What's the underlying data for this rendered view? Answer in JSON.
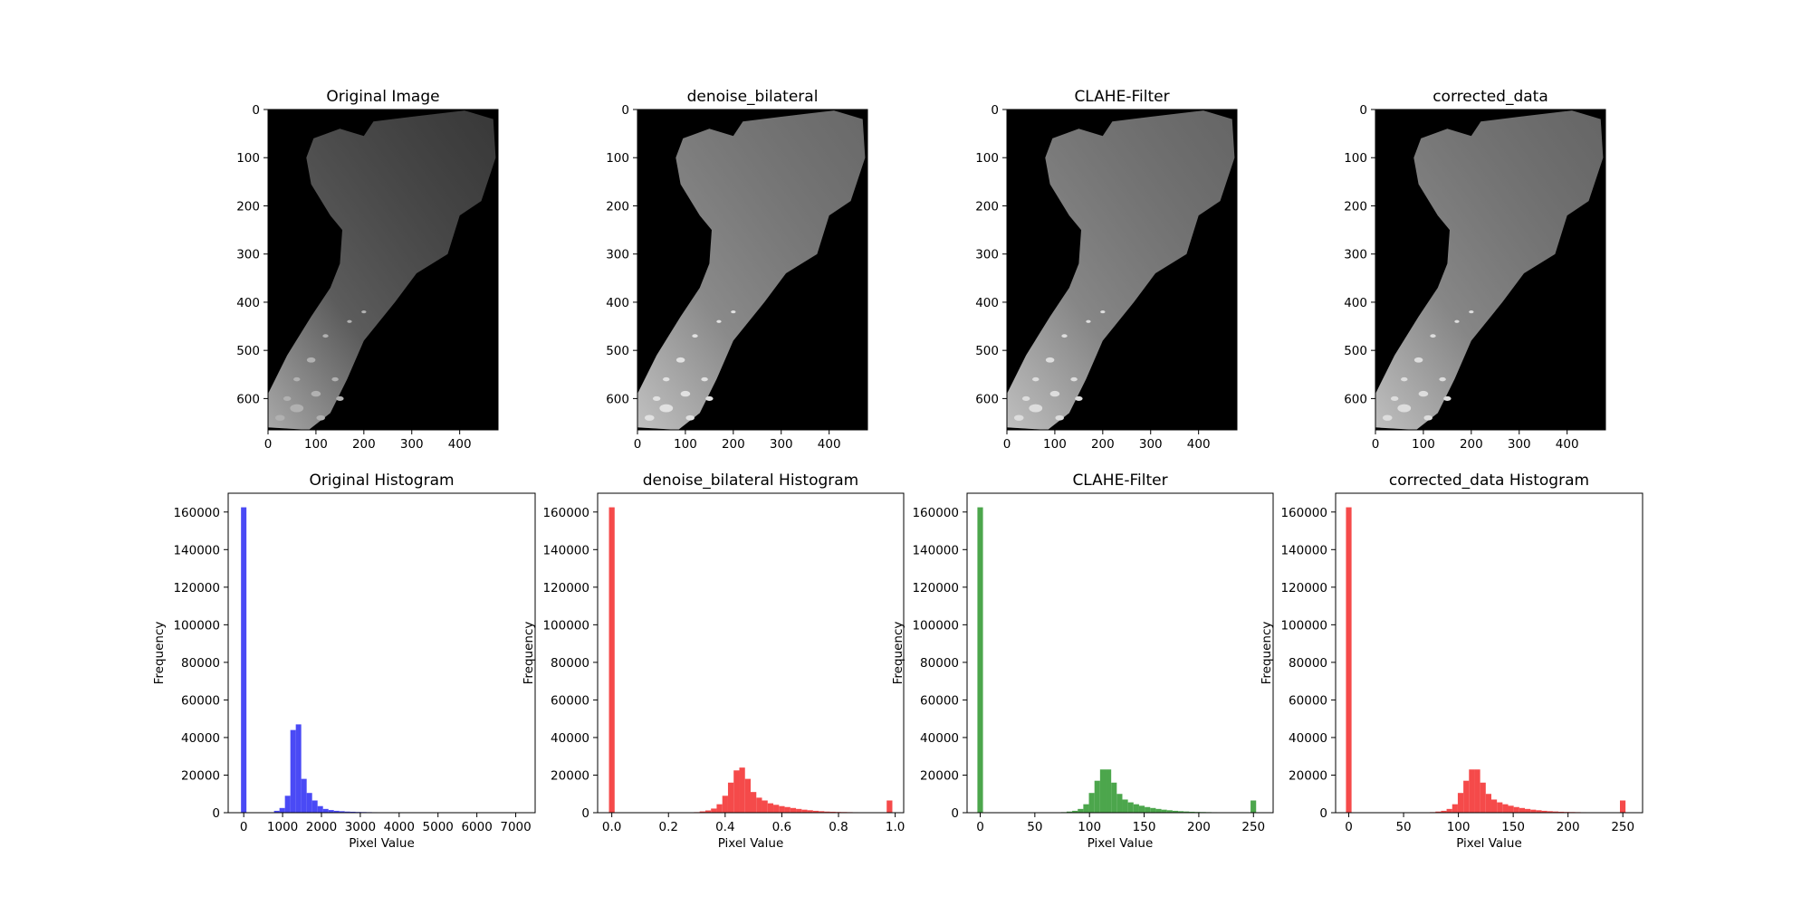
{
  "panels": [
    {
      "title": "Original Image",
      "x_ticks": [
        "0",
        "100",
        "200",
        "300",
        "400"
      ],
      "y_ticks": [
        "0",
        "100",
        "200",
        "300",
        "400",
        "500",
        "600"
      ],
      "brightness": 0.42
    },
    {
      "title": "denoise_bilateral",
      "x_ticks": [
        "0",
        "100",
        "200",
        "300",
        "400"
      ],
      "y_ticks": [
        "0",
        "100",
        "200",
        "300",
        "400",
        "500",
        "600"
      ],
      "brightness": 0.78
    },
    {
      "title": "CLAHE-Filter",
      "x_ticks": [
        "0",
        "100",
        "200",
        "300",
        "400"
      ],
      "y_ticks": [
        "0",
        "100",
        "200",
        "300",
        "400",
        "500",
        "600"
      ],
      "brightness": 0.75
    },
    {
      "title": "corrected_data",
      "x_ticks": [
        "0",
        "100",
        "200",
        "300",
        "400"
      ],
      "y_ticks": [
        "0",
        "100",
        "200",
        "300",
        "400",
        "500",
        "600"
      ],
      "brightness": 0.75
    }
  ],
  "chart_data": [
    {
      "type": "bar",
      "title": "Original Histogram",
      "xlabel": "Pixel Value",
      "ylabel": "Frequency",
      "color": "#4a4af5",
      "xlim": [
        -400,
        7500
      ],
      "ylim": [
        0,
        170000
      ],
      "bin_width": 140,
      "x_ticks": [
        0,
        1000,
        2000,
        3000,
        4000,
        5000,
        6000,
        7000
      ],
      "y_ticks": [
        0,
        20000,
        40000,
        60000,
        80000,
        100000,
        120000,
        140000,
        160000
      ],
      "bins": [
        {
          "x": 0,
          "y": 162500
        },
        {
          "x": 850,
          "y": 1000
        },
        {
          "x": 990,
          "y": 2500
        },
        {
          "x": 1130,
          "y": 9000
        },
        {
          "x": 1270,
          "y": 44000
        },
        {
          "x": 1410,
          "y": 47000
        },
        {
          "x": 1550,
          "y": 18000
        },
        {
          "x": 1690,
          "y": 10500
        },
        {
          "x": 1830,
          "y": 6500
        },
        {
          "x": 1970,
          "y": 3500
        },
        {
          "x": 2110,
          "y": 2000
        },
        {
          "x": 2250,
          "y": 1400
        },
        {
          "x": 2390,
          "y": 1000
        },
        {
          "x": 2530,
          "y": 800
        },
        {
          "x": 2670,
          "y": 600
        },
        {
          "x": 2810,
          "y": 500
        },
        {
          "x": 2950,
          "y": 400
        },
        {
          "x": 3090,
          "y": 350
        },
        {
          "x": 3230,
          "y": 300
        },
        {
          "x": 3370,
          "y": 250
        },
        {
          "x": 3510,
          "y": 220
        },
        {
          "x": 3650,
          "y": 200
        },
        {
          "x": 3790,
          "y": 180
        },
        {
          "x": 3930,
          "y": 160
        },
        {
          "x": 4070,
          "y": 140
        },
        {
          "x": 4210,
          "y": 120
        }
      ]
    },
    {
      "type": "bar",
      "title": "denoise_bilateral Histogram",
      "xlabel": "Pixel Value",
      "ylabel": "Frequency",
      "color": "#f54a4a",
      "xlim": [
        -0.05,
        1.03
      ],
      "ylim": [
        0,
        170000
      ],
      "bin_width": 0.02,
      "x_ticks": [
        0.0,
        0.2,
        0.4,
        0.6,
        0.8,
        1.0
      ],
      "x_tick_labels": [
        "0.0",
        "0.2",
        "0.4",
        "0.6",
        "0.8",
        "1.0"
      ],
      "y_ticks": [
        0,
        20000,
        40000,
        60000,
        80000,
        100000,
        120000,
        140000,
        160000
      ],
      "bins": [
        {
          "x": 0.0,
          "y": 162500
        },
        {
          "x": 0.3,
          "y": 300
        },
        {
          "x": 0.32,
          "y": 700
        },
        {
          "x": 0.34,
          "y": 1200
        },
        {
          "x": 0.36,
          "y": 2200
        },
        {
          "x": 0.38,
          "y": 4500
        },
        {
          "x": 0.4,
          "y": 9000
        },
        {
          "x": 0.42,
          "y": 16000
        },
        {
          "x": 0.44,
          "y": 22500
        },
        {
          "x": 0.46,
          "y": 24000
        },
        {
          "x": 0.48,
          "y": 18000
        },
        {
          "x": 0.5,
          "y": 11000
        },
        {
          "x": 0.52,
          "y": 8000
        },
        {
          "x": 0.54,
          "y": 6500
        },
        {
          "x": 0.56,
          "y": 5000
        },
        {
          "x": 0.58,
          "y": 4200
        },
        {
          "x": 0.6,
          "y": 3500
        },
        {
          "x": 0.62,
          "y": 3000
        },
        {
          "x": 0.64,
          "y": 2500
        },
        {
          "x": 0.66,
          "y": 2000
        },
        {
          "x": 0.68,
          "y": 1600
        },
        {
          "x": 0.7,
          "y": 1300
        },
        {
          "x": 0.72,
          "y": 1000
        },
        {
          "x": 0.74,
          "y": 800
        },
        {
          "x": 0.76,
          "y": 600
        },
        {
          "x": 0.78,
          "y": 500
        },
        {
          "x": 0.8,
          "y": 400
        },
        {
          "x": 0.82,
          "y": 350
        },
        {
          "x": 0.84,
          "y": 300
        },
        {
          "x": 0.86,
          "y": 250
        },
        {
          "x": 0.88,
          "y": 200
        },
        {
          "x": 0.98,
          "y": 6500
        }
      ]
    },
    {
      "type": "bar",
      "title": "CLAHE-Filter",
      "xlabel": "Pixel Value",
      "ylabel": "Frequency",
      "color": "#4ca64c",
      "xlim": [
        -12,
        268
      ],
      "ylim": [
        0,
        170000
      ],
      "bin_width": 5.1,
      "x_ticks": [
        0,
        50,
        100,
        150,
        200,
        250
      ],
      "y_ticks": [
        0,
        20000,
        40000,
        60000,
        80000,
        100000,
        120000,
        140000,
        160000
      ],
      "bins": [
        {
          "x": 0,
          "y": 162500
        },
        {
          "x": 76.5,
          "y": 300
        },
        {
          "x": 81.6,
          "y": 600
        },
        {
          "x": 86.7,
          "y": 1000
        },
        {
          "x": 91.8,
          "y": 2000
        },
        {
          "x": 96.9,
          "y": 4500
        },
        {
          "x": 102.0,
          "y": 10500
        },
        {
          "x": 107.1,
          "y": 17000
        },
        {
          "x": 112.2,
          "y": 23000
        },
        {
          "x": 117.3,
          "y": 23000
        },
        {
          "x": 122.4,
          "y": 16000
        },
        {
          "x": 127.5,
          "y": 10000
        },
        {
          "x": 132.6,
          "y": 7000
        },
        {
          "x": 137.7,
          "y": 5500
        },
        {
          "x": 142.8,
          "y": 4500
        },
        {
          "x": 147.9,
          "y": 3700
        },
        {
          "x": 153.0,
          "y": 3000
        },
        {
          "x": 158.1,
          "y": 2500
        },
        {
          "x": 163.2,
          "y": 2000
        },
        {
          "x": 168.3,
          "y": 1600
        },
        {
          "x": 173.4,
          "y": 1300
        },
        {
          "x": 178.5,
          "y": 1000
        },
        {
          "x": 183.6,
          "y": 800
        },
        {
          "x": 188.7,
          "y": 650
        },
        {
          "x": 193.8,
          "y": 500
        },
        {
          "x": 198.9,
          "y": 400
        },
        {
          "x": 204.0,
          "y": 350
        },
        {
          "x": 209.1,
          "y": 300
        },
        {
          "x": 214.2,
          "y": 250
        },
        {
          "x": 219.3,
          "y": 200
        },
        {
          "x": 249.9,
          "y": 6500
        }
      ]
    },
    {
      "type": "bar",
      "title": "corrected_data Histogram",
      "xlabel": "Pixel Value",
      "ylabel": "Frequency",
      "color": "#f54a4a",
      "xlim": [
        -12,
        268
      ],
      "ylim": [
        0,
        170000
      ],
      "bin_width": 5.1,
      "x_ticks": [
        0,
        50,
        100,
        150,
        200,
        250
      ],
      "y_ticks": [
        0,
        20000,
        40000,
        60000,
        80000,
        100000,
        120000,
        140000,
        160000
      ],
      "bins": [
        {
          "x": 0,
          "y": 162500
        },
        {
          "x": 76.5,
          "y": 300
        },
        {
          "x": 81.6,
          "y": 600
        },
        {
          "x": 86.7,
          "y": 1000
        },
        {
          "x": 91.8,
          "y": 2000
        },
        {
          "x": 96.9,
          "y": 4500
        },
        {
          "x": 102.0,
          "y": 10500
        },
        {
          "x": 107.1,
          "y": 17000
        },
        {
          "x": 112.2,
          "y": 23000
        },
        {
          "x": 117.3,
          "y": 23000
        },
        {
          "x": 122.4,
          "y": 16000
        },
        {
          "x": 127.5,
          "y": 10000
        },
        {
          "x": 132.6,
          "y": 7000
        },
        {
          "x": 137.7,
          "y": 5500
        },
        {
          "x": 142.8,
          "y": 4500
        },
        {
          "x": 147.9,
          "y": 3700
        },
        {
          "x": 153.0,
          "y": 3000
        },
        {
          "x": 158.1,
          "y": 2500
        },
        {
          "x": 163.2,
          "y": 2000
        },
        {
          "x": 168.3,
          "y": 1600
        },
        {
          "x": 173.4,
          "y": 1300
        },
        {
          "x": 178.5,
          "y": 1000
        },
        {
          "x": 183.6,
          "y": 800
        },
        {
          "x": 188.7,
          "y": 650
        },
        {
          "x": 193.8,
          "y": 500
        },
        {
          "x": 198.9,
          "y": 400
        },
        {
          "x": 204.0,
          "y": 350
        },
        {
          "x": 209.1,
          "y": 300
        },
        {
          "x": 214.2,
          "y": 250
        },
        {
          "x": 219.3,
          "y": 200
        },
        {
          "x": 249.9,
          "y": 6500
        }
      ]
    }
  ]
}
